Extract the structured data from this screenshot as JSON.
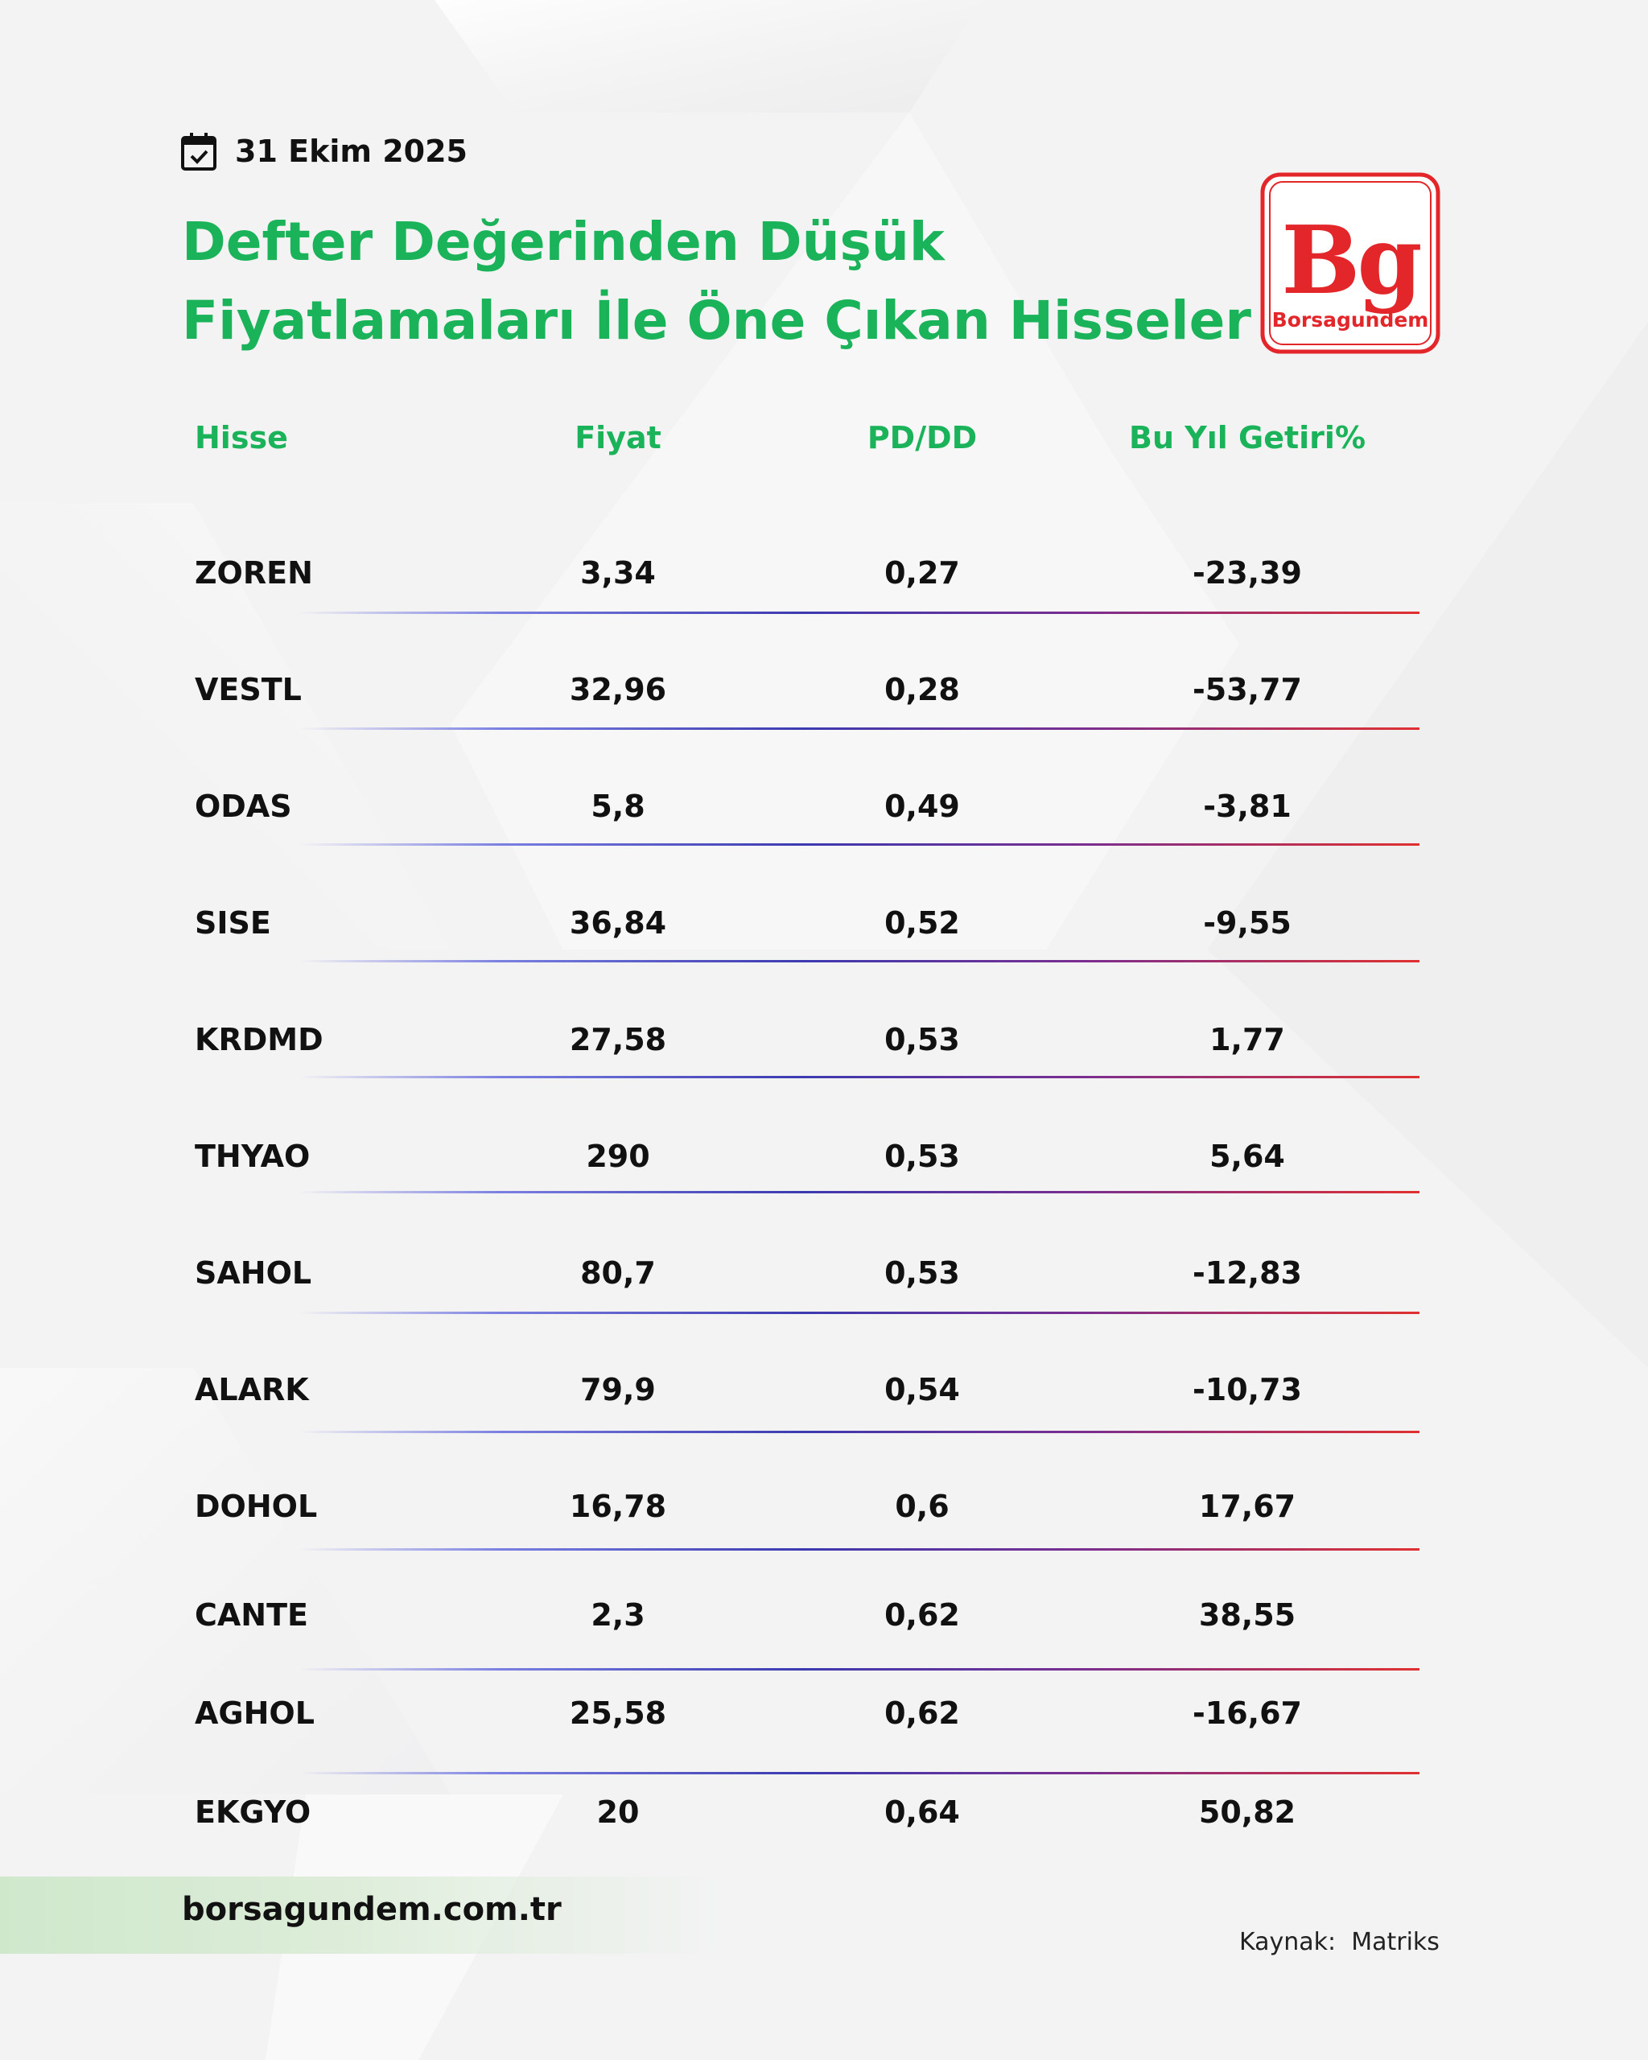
{
  "date": "31 Ekim 2025",
  "title": {
    "line1": "Defter Değerinden Düşük",
    "line2": "Fiyatlamaları İle Öne Çıkan Hisseler"
  },
  "logo": {
    "mark": "Bg",
    "name": "Borsagundem",
    "color": "#e3262a"
  },
  "table": {
    "headers": [
      "Hisse",
      "Fiyat",
      "PD/DD",
      "Bu Yıl Getiri%"
    ],
    "rows": [
      {
        "ticker": "ZOREN",
        "price": "3,34",
        "pbv": "0,27",
        "ytd": "-23,39"
      },
      {
        "ticker": "VESTL",
        "price": "32,96",
        "pbv": "0,28",
        "ytd": "-53,77"
      },
      {
        "ticker": "ODAS",
        "price": "5,8",
        "pbv": "0,49",
        "ytd": "-3,81"
      },
      {
        "ticker": "SISE",
        "price": "36,84",
        "pbv": "0,52",
        "ytd": "-9,55"
      },
      {
        "ticker": "KRDMD",
        "price": "27,58",
        "pbv": "0,53",
        "ytd": "1,77"
      },
      {
        "ticker": "THYAO",
        "price": "290",
        "pbv": "0,53",
        "ytd": "5,64"
      },
      {
        "ticker": "SAHOL",
        "price": "80,7",
        "pbv": "0,53",
        "ytd": "-12,83"
      },
      {
        "ticker": "ALARK",
        "price": "79,9",
        "pbv": "0,54",
        "ytd": "-10,73"
      },
      {
        "ticker": "DOHOL",
        "price": "16,78",
        "pbv": "0,6",
        "ytd": "17,67"
      },
      {
        "ticker": "CANTE",
        "price": "2,3",
        "pbv": "0,62",
        "ytd": "38,55"
      },
      {
        "ticker": "AGHOL",
        "price": "25,58",
        "pbv": "0,62",
        "ytd": "-16,67"
      },
      {
        "ticker": "EKGYO",
        "price": "20",
        "pbv": "0,64",
        "ytd": "50,82"
      }
    ]
  },
  "footer": {
    "website": "borsagundem.com.tr",
    "source": "Kaynak:  Matriks"
  },
  "colors": {
    "title_green": "#1bb35a",
    "brand_red": "#e3262a",
    "background": "#f3f3f4"
  },
  "icons": [
    "calendar-check-icon"
  ]
}
